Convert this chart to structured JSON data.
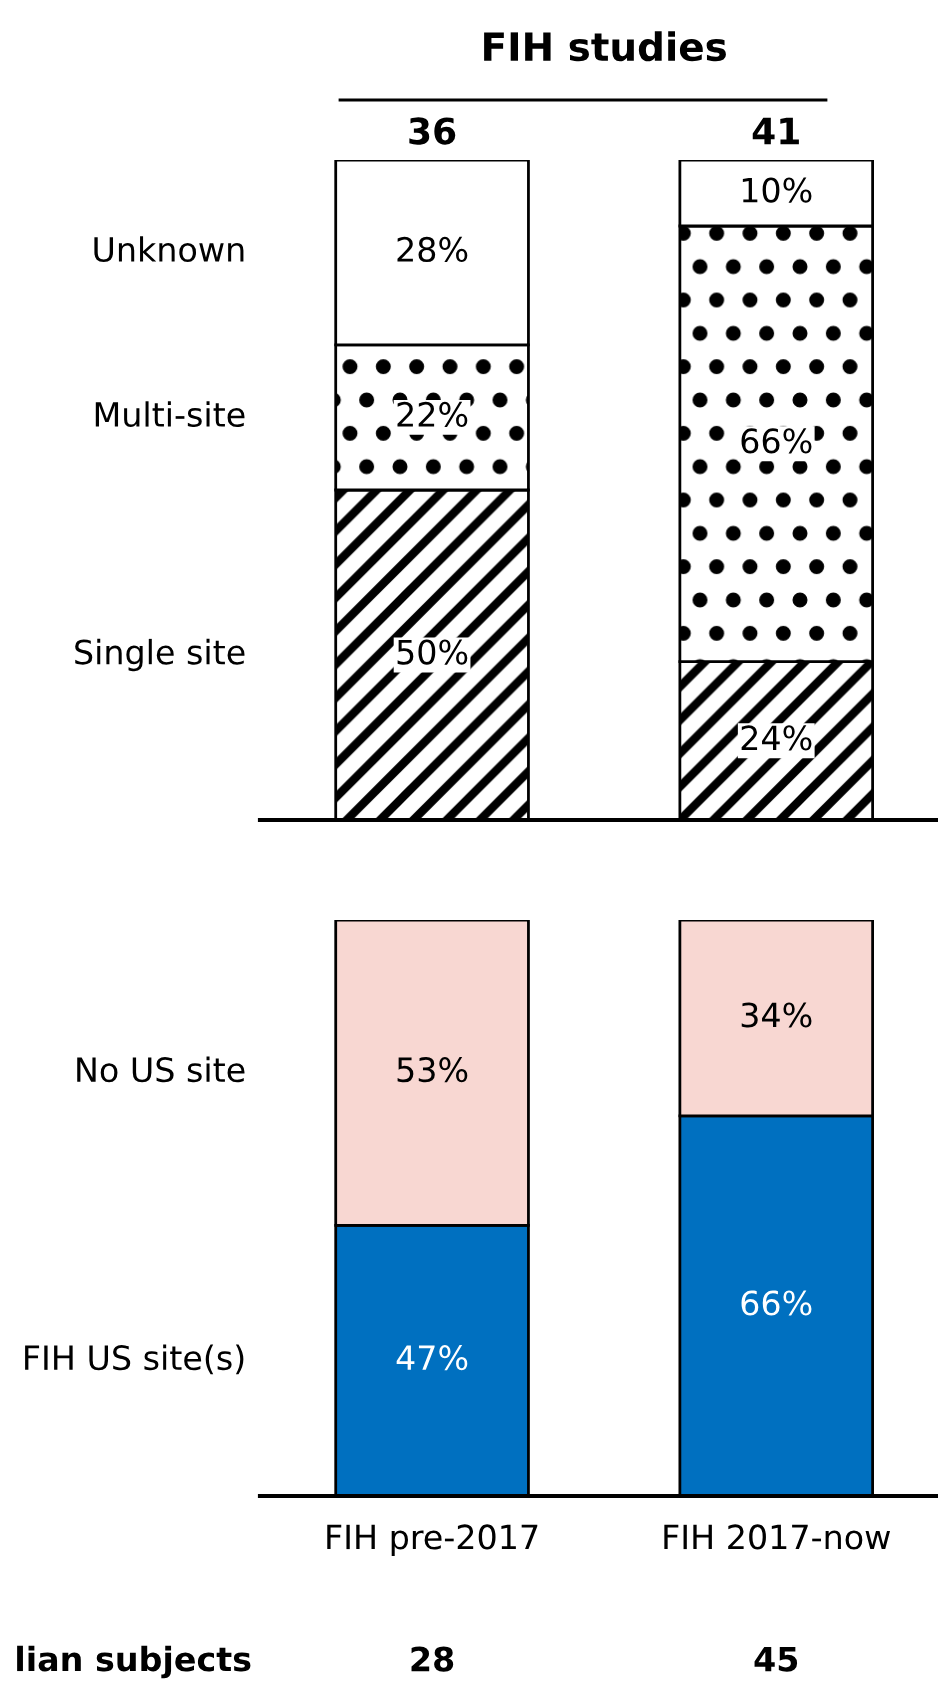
{
  "chart_data": [
    {
      "type": "bar",
      "title": "FIH studies",
      "stacked": true,
      "legend": false,
      "tick_labels": false,
      "ylim": [
        0,
        100
      ],
      "categories": [
        "FIH pre-2017",
        "FIH 2017-now"
      ],
      "series": [
        {
          "name": "Single site",
          "color": "#ffffff",
          "values": [
            50,
            24
          ],
          "value_labels": [
            "50%",
            "24%"
          ]
        },
        {
          "name": "Multi-site",
          "color": "#ffffff",
          "values": [
            22,
            66
          ],
          "value_labels": [
            "22%",
            "66%"
          ]
        },
        {
          "name": "Unknown",
          "color": "#ffffff",
          "values": [
            28,
            10
          ],
          "value_labels": [
            "28%",
            "10%"
          ]
        }
      ],
      "annotations": [
        {
          "text": "36",
          "x": "FIH pre-2017",
          "y": 100
        },
        {
          "text": "41",
          "x": "FIH 2017-now",
          "y": 100
        }
      ]
    },
    {
      "type": "bar",
      "stacked": true,
      "legend": false,
      "ylim": [
        0,
        100
      ],
      "categories": [
        "FIH pre-2017",
        "FIH 2017-now"
      ],
      "series": [
        {
          "name": "FIH US site(s)",
          "color": "#0070c0",
          "values": [
            47,
            66
          ],
          "value_labels": [
            "47%",
            "66%"
          ]
        },
        {
          "name": "No US site",
          "color": "#f8d7d2",
          "values": [
            53,
            34
          ],
          "value_labels": [
            "53%",
            "34%"
          ]
        }
      ],
      "annotations": [
        "lian subjects",
        "28",
        "45"
      ]
    }
  ]
}
